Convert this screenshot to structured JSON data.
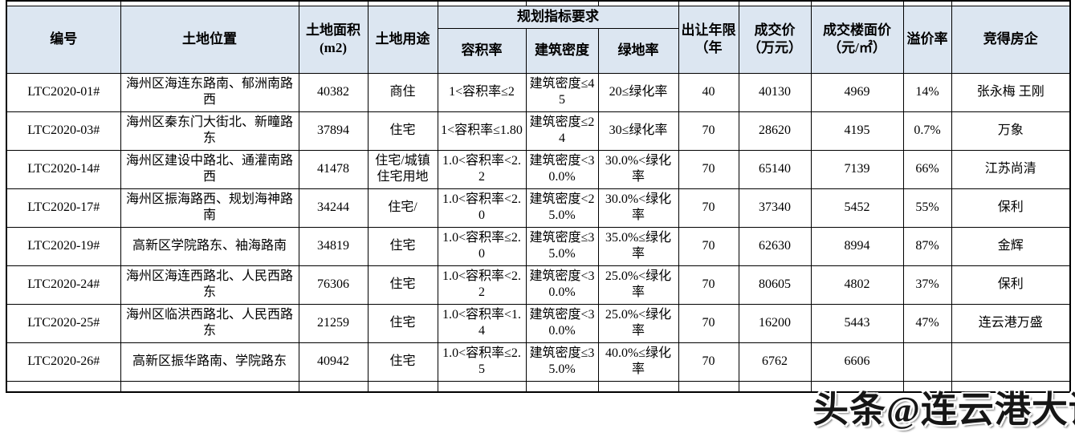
{
  "page": {
    "background": "#ffffff"
  },
  "watermark": {
    "text": "头条@连云港大话楼市",
    "color": "#161616"
  },
  "table": {
    "header_bg": "#dce6f1",
    "header": {
      "id": "编号",
      "location": "土地位置",
      "area": "土地面积(m2)",
      "use": "土地用途",
      "planning_group": "规划指标要求",
      "far": "容积率",
      "density": "建筑密度",
      "green": "绿地率",
      "years": "出让年限（年",
      "price": "成交价（万元）",
      "floor_price": "成交楼面价（元/㎡）",
      "premium": "溢价率",
      "winner": "竞得房企"
    },
    "rows": [
      {
        "id": "LTC2020-01#",
        "location": "海州区海连东路南、郁洲南路西",
        "area": "40382",
        "use": "商住",
        "far": "1<容积率≤2",
        "density": "建筑密度≤45",
        "green": "20≤绿化率",
        "years": "40",
        "price": "40130",
        "floor_price": "4969",
        "premium": "14%",
        "winner": "张永梅 王刚"
      },
      {
        "id": "LTC2020-03#",
        "location": "海州区秦东门大街北、新疃路东",
        "area": "37894",
        "use": "住宅",
        "far": "1<容积率≤1.80",
        "density": "建筑密度≤24",
        "green": "30≤绿化率",
        "years": "70",
        "price": "28620",
        "floor_price": "4195",
        "premium": "0.7%",
        "winner": "万象"
      },
      {
        "id": "LTC2020-14#",
        "location": "海州区建设中路北、通灌南路西",
        "area": "41478",
        "use": "住宅/城镇住宅用地",
        "far": "1.0<容积率<2.2",
        "density": "建筑密度<30.0%",
        "green": "30.0%<绿化率",
        "years": "70",
        "price": "65140",
        "floor_price": "7139",
        "premium": "66%",
        "winner": "江苏尚清"
      },
      {
        "id": "LTC2020-17#",
        "location": "海州区振海路西、规划海神路南",
        "area": "34244",
        "use": "住宅/",
        "far": "1.0<容积率<2.0",
        "density": "建筑密度<25.0%",
        "green": "30.0%<绿化率",
        "years": "70",
        "price": "37340",
        "floor_price": "5452",
        "premium": "55%",
        "winner": "保利"
      },
      {
        "id": "LTC2020-19#",
        "location": "高新区学院路东、袖海路南",
        "area": "34819",
        "use": "住宅",
        "far": "1.0<容积率≤2.0",
        "density": "建筑密度≤35.0%",
        "green": "35.0%≤绿化率",
        "years": "70",
        "price": "62630",
        "floor_price": "8994",
        "premium": "87%",
        "winner": "金辉"
      },
      {
        "id": "LTC2020-24#",
        "location": "海州区海连西路北、人民西路东",
        "area": "76306",
        "use": "住宅",
        "far": "1.0<容积率<2.2",
        "density": "建筑密度<30.0%",
        "green": "25.0%<绿化率",
        "years": "70",
        "price": "80605",
        "floor_price": "4802",
        "premium": "37%",
        "winner": "保利"
      },
      {
        "id": "LTC2020-25#",
        "location": "海州区临洪西路北、人民西路东",
        "area": "21259",
        "use": "住宅",
        "far": "1.0<容积率<1.4",
        "density": "建筑密度<30.0%",
        "green": "25.0%<绿化率",
        "years": "70",
        "price": "16200",
        "floor_price": "5443",
        "premium": "47%",
        "winner": "连云港万盛"
      },
      {
        "id": "LTC2020-26#",
        "location": "高新区振华路南、学院路东",
        "area": "40942",
        "use": "住宅",
        "far": "1.0<容积率≤2.5",
        "density": "建筑密度≤35.0%",
        "green": "40.0%≤绿化率",
        "years": "70",
        "price": "6762",
        "floor_price": "6606",
        "premium": "",
        "winner": ""
      }
    ]
  }
}
